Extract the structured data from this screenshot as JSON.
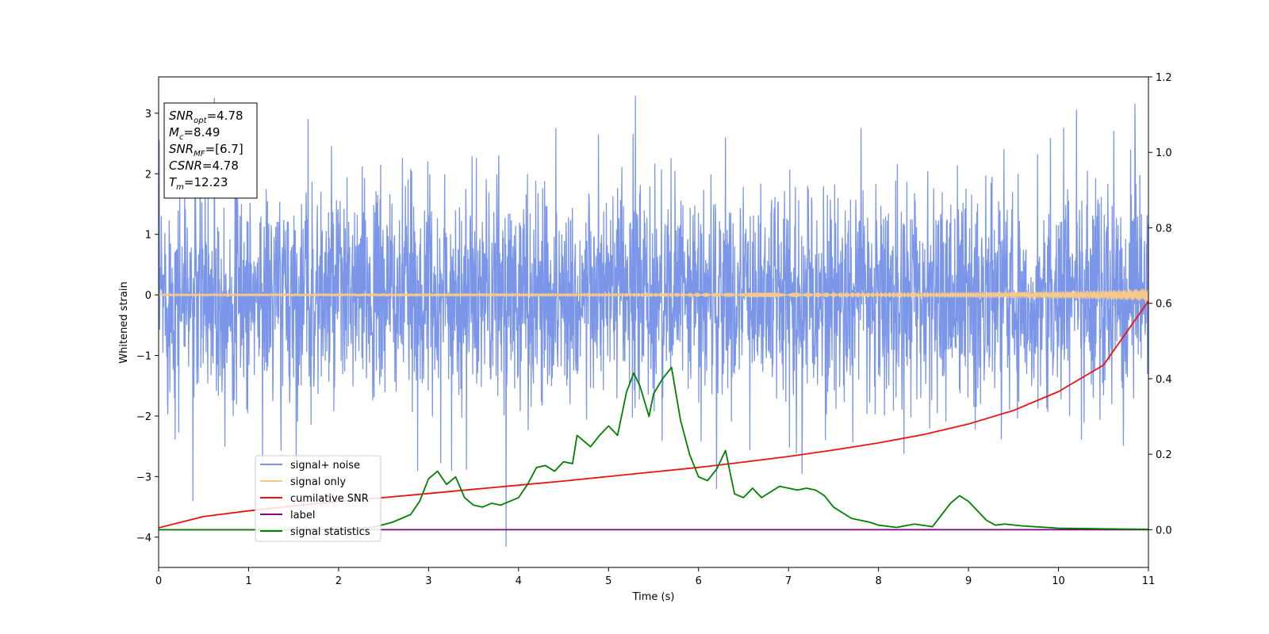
{
  "chart_data": {
    "type": "line",
    "title": "",
    "xlabel": "Time (s)",
    "ylabel": "Whitened strain",
    "y2label": "",
    "xlim": [
      0,
      11
    ],
    "ylim": [
      -4.5,
      3.6
    ],
    "y2lim": [
      -0.1,
      1.2
    ],
    "x_ticks": [
      "0",
      "1",
      "2",
      "3",
      "4",
      "5",
      "6",
      "7",
      "8",
      "9",
      "10",
      "11"
    ],
    "y_ticks": [
      "−4",
      "−3",
      "−2",
      "−1",
      "0",
      "1",
      "2",
      "3"
    ],
    "y2_ticks": [
      "0.0",
      "0.2",
      "0.4",
      "0.6",
      "0.8",
      "1.0",
      "1.2"
    ],
    "grid": false,
    "legend_position": "lower-left",
    "info_box": {
      "lines": [
        {
          "sym": "SNR",
          "sub": "opt",
          "value": "=4.78"
        },
        {
          "sym": "M",
          "sub": "c",
          "value": "=8.49"
        },
        {
          "sym": "SNR",
          "sub": "MF",
          "value": "=[6.7]"
        },
        {
          "sym": "CSNR",
          "sub": "",
          "value": "=4.78"
        },
        {
          "sym": "T",
          "sub": "m",
          "value": "=12.23"
        }
      ]
    },
    "series": [
      {
        "name": "signal+ noise",
        "color": "#7b96e8",
        "axis": "left",
        "kind": "noise",
        "sigma": 0.9,
        "peaks_x": [
          0.38,
          0.62,
          1.66,
          3.86,
          5.3,
          6.2,
          7.15,
          10.2,
          10.85
        ],
        "peaks_y": [
          -3.4,
          3.25,
          2.9,
          -4.15,
          3.28,
          -3.2,
          -2.95,
          3.05,
          3.15
        ]
      },
      {
        "name": "signal only",
        "color": "#f5c98a",
        "axis": "left",
        "kind": "chirp",
        "t_end": 11,
        "amp_end": 0.1
      },
      {
        "name": "cumilative SNR",
        "color": "#ee1111",
        "axis": "right",
        "x": [
          0,
          0.5,
          1,
          1.5,
          2,
          2.5,
          3,
          3.5,
          4,
          4.5,
          5,
          5.5,
          6,
          6.5,
          7,
          7.5,
          8,
          8.5,
          9,
          9.5,
          10,
          10.5,
          11
        ],
        "values": [
          0.005,
          0.035,
          0.05,
          0.063,
          0.075,
          0.085,
          0.096,
          0.107,
          0.118,
          0.129,
          0.141,
          0.153,
          0.165,
          0.179,
          0.194,
          0.211,
          0.23,
          0.252,
          0.28,
          0.316,
          0.366,
          0.436,
          0.606
        ]
      },
      {
        "name": "label",
        "color": "#800080",
        "axis": "right",
        "x": [
          0,
          11
        ],
        "values": [
          0.0,
          0.0
        ]
      },
      {
        "name": "signal statistics",
        "color": "#008000",
        "axis": "right",
        "x": [
          0,
          0.5,
          1,
          1.5,
          2,
          2.2,
          2.4,
          2.6,
          2.8,
          2.9,
          3.0,
          3.1,
          3.2,
          3.3,
          3.4,
          3.5,
          3.6,
          3.7,
          3.8,
          3.9,
          4.0,
          4.1,
          4.2,
          4.3,
          4.4,
          4.5,
          4.6,
          4.65,
          4.7,
          4.8,
          4.9,
          5.0,
          5.1,
          5.2,
          5.28,
          5.35,
          5.45,
          5.5,
          5.6,
          5.7,
          5.8,
          5.9,
          6.0,
          6.1,
          6.2,
          6.3,
          6.4,
          6.5,
          6.6,
          6.7,
          6.8,
          6.9,
          7.0,
          7.1,
          7.2,
          7.3,
          7.4,
          7.5,
          7.6,
          7.7,
          7.8,
          7.9,
          8.0,
          8.2,
          8.4,
          8.6,
          8.8,
          8.9,
          9.0,
          9.1,
          9.2,
          9.3,
          9.4,
          9.6,
          9.8,
          10.0,
          10.3,
          10.6,
          11
        ],
        "values": [
          0.0,
          0.0,
          0.0,
          0.0,
          0.001,
          0.003,
          0.007,
          0.02,
          0.04,
          0.075,
          0.135,
          0.155,
          0.12,
          0.14,
          0.085,
          0.065,
          0.06,
          0.07,
          0.065,
          0.075,
          0.085,
          0.12,
          0.165,
          0.17,
          0.155,
          0.18,
          0.175,
          0.25,
          0.24,
          0.22,
          0.25,
          0.275,
          0.25,
          0.365,
          0.415,
          0.38,
          0.3,
          0.36,
          0.4,
          0.43,
          0.29,
          0.2,
          0.14,
          0.13,
          0.16,
          0.21,
          0.095,
          0.085,
          0.11,
          0.085,
          0.1,
          0.115,
          0.11,
          0.105,
          0.11,
          0.105,
          0.09,
          0.06,
          0.045,
          0.03,
          0.025,
          0.02,
          0.012,
          0.006,
          0.015,
          0.008,
          0.07,
          0.09,
          0.075,
          0.05,
          0.025,
          0.012,
          0.015,
          0.01,
          0.007,
          0.004,
          0.003,
          0.002,
          0.001
        ]
      }
    ]
  }
}
